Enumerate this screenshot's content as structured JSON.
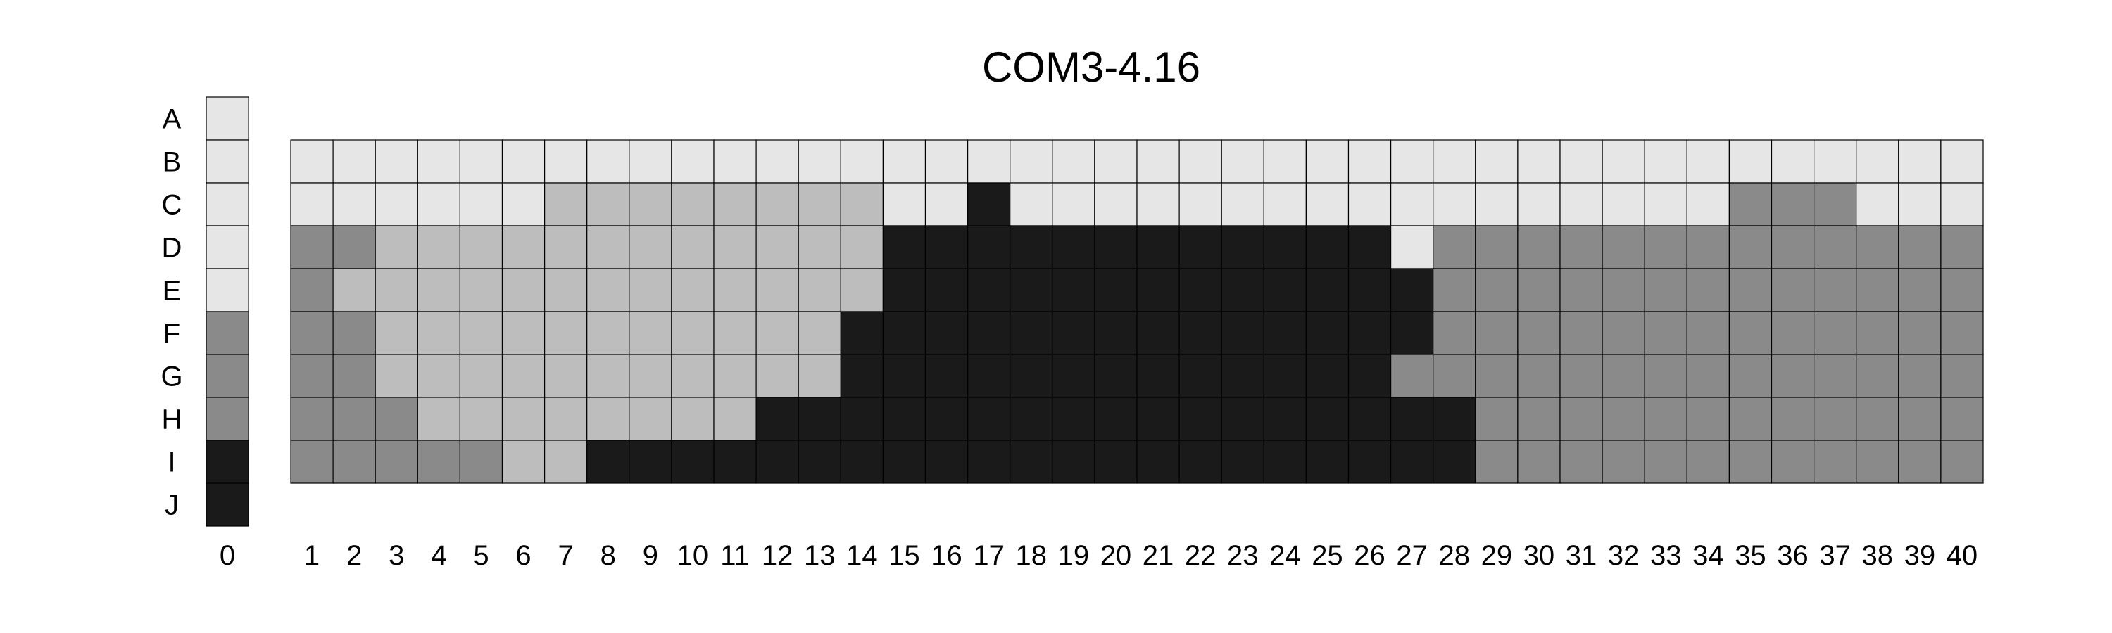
{
  "chart_data": {
    "type": "heatmap",
    "title": "COM3-4.16",
    "rows": [
      "A",
      "B",
      "C",
      "D",
      "E",
      "F",
      "G",
      "H",
      "I",
      "J"
    ],
    "columns": [
      "1",
      "2",
      "3",
      "4",
      "5",
      "6",
      "7",
      "8",
      "9",
      "10",
      "11",
      "12",
      "13",
      "14",
      "15",
      "16",
      "17",
      "18",
      "19",
      "20",
      "21",
      "22",
      "23",
      "24",
      "25",
      "26",
      "27",
      "28",
      "29",
      "30",
      "31",
      "32",
      "33",
      "34",
      "35",
      "36",
      "37",
      "38",
      "39",
      "40"
    ],
    "reference_column": {
      "label": "0",
      "levels": [
        0,
        0,
        0,
        0,
        0,
        2,
        2,
        2,
        3,
        3
      ]
    },
    "plate_rows": [
      "B",
      "C",
      "D",
      "E",
      "F",
      "G",
      "H",
      "I"
    ],
    "level_colors": [
      "#e6e6e6",
      "#bdbdbd",
      "#8a8a8a",
      "#1a1a1a"
    ],
    "values": [
      [
        0,
        0,
        0,
        0,
        0,
        0,
        0,
        0,
        0,
        0,
        0,
        0,
        0,
        0,
        0,
        0,
        0,
        0,
        0,
        0,
        0,
        0,
        0,
        0,
        0,
        0,
        0,
        0,
        0,
        0,
        0,
        0,
        0,
        0,
        0,
        0,
        0,
        0,
        0,
        0
      ],
      [
        0,
        0,
        0,
        0,
        0,
        0,
        1,
        1,
        1,
        1,
        1,
        1,
        1,
        1,
        0,
        0,
        3,
        0,
        0,
        0,
        0,
        0,
        0,
        0,
        0,
        0,
        0,
        0,
        0,
        0,
        0,
        0,
        0,
        0,
        2,
        2,
        2,
        0,
        0,
        0
      ],
      [
        2,
        2,
        1,
        1,
        1,
        1,
        1,
        1,
        1,
        1,
        1,
        1,
        1,
        1,
        3,
        3,
        3,
        3,
        3,
        3,
        3,
        3,
        3,
        3,
        3,
        3,
        0,
        2,
        2,
        2,
        2,
        2,
        2,
        2,
        2,
        2,
        2,
        2,
        2,
        2
      ],
      [
        2,
        1,
        1,
        1,
        1,
        1,
        1,
        1,
        1,
        1,
        1,
        1,
        1,
        1,
        3,
        3,
        3,
        3,
        3,
        3,
        3,
        3,
        3,
        3,
        3,
        3,
        3,
        2,
        2,
        2,
        2,
        2,
        2,
        2,
        2,
        2,
        2,
        2,
        2,
        2
      ],
      [
        2,
        2,
        1,
        1,
        1,
        1,
        1,
        1,
        1,
        1,
        1,
        1,
        1,
        3,
        3,
        3,
        3,
        3,
        3,
        3,
        3,
        3,
        3,
        3,
        3,
        3,
        3,
        2,
        2,
        2,
        2,
        2,
        2,
        2,
        2,
        2,
        2,
        2,
        2,
        2
      ],
      [
        2,
        2,
        1,
        1,
        1,
        1,
        1,
        1,
        1,
        1,
        1,
        1,
        1,
        3,
        3,
        3,
        3,
        3,
        3,
        3,
        3,
        3,
        3,
        3,
        3,
        3,
        2,
        2,
        2,
        2,
        2,
        2,
        2,
        2,
        2,
        2,
        2,
        2,
        2,
        2
      ],
      [
        2,
        2,
        2,
        1,
        1,
        1,
        1,
        1,
        1,
        1,
        1,
        3,
        3,
        3,
        3,
        3,
        3,
        3,
        3,
        3,
        3,
        3,
        3,
        3,
        3,
        3,
        3,
        3,
        2,
        2,
        2,
        2,
        2,
        2,
        2,
        2,
        2,
        2,
        2,
        2
      ],
      [
        2,
        2,
        2,
        2,
        2,
        1,
        1,
        3,
        3,
        3,
        3,
        3,
        3,
        3,
        3,
        3,
        3,
        3,
        3,
        3,
        3,
        3,
        3,
        3,
        3,
        3,
        3,
        3,
        2,
        2,
        2,
        2,
        2,
        2,
        2,
        2,
        2,
        2,
        2,
        2
      ]
    ]
  }
}
